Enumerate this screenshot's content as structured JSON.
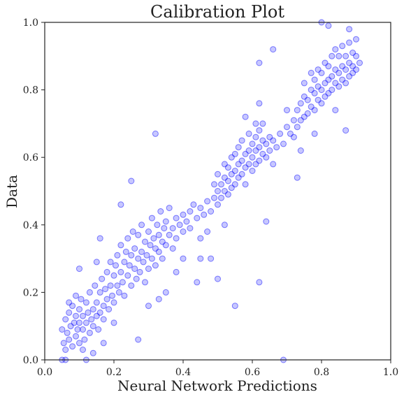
{
  "chart_data": {
    "type": "scatter",
    "title": "Calibration Plot",
    "xlabel": "Neural Network Predictions",
    "ylabel": "Data",
    "xlim": [
      0.0,
      1.0
    ],
    "ylim": [
      0.0,
      1.0
    ],
    "x_ticks": [
      0.0,
      0.2,
      0.4,
      0.6,
      0.8,
      1.0
    ],
    "y_ticks": [
      0.0,
      0.2,
      0.4,
      0.6,
      0.8,
      1.0
    ],
    "x_tick_labels": [
      "0.0",
      "0.2",
      "0.4",
      "0.6",
      "0.8",
      "1.0"
    ],
    "y_tick_labels": [
      "0.0",
      "0.2",
      "0.4",
      "0.6",
      "0.8",
      "1.0"
    ],
    "grid": false,
    "legend": "none",
    "marker_color": "#0000ff",
    "marker_alpha": 0.22,
    "series": [
      {
        "points": [
          [
            0.05,
            0.09
          ],
          [
            0.055,
            0.05
          ],
          [
            0.06,
            0.12
          ],
          [
            0.06,
            0.03
          ],
          [
            0.065,
            0.08
          ],
          [
            0.07,
            0.14
          ],
          [
            0.07,
            0.06
          ],
          [
            0.075,
            0.1
          ],
          [
            0.08,
            0.04
          ],
          [
            0.08,
            0.16
          ],
          [
            0.085,
            0.11
          ],
          [
            0.09,
            0.07
          ],
          [
            0.09,
            0.13
          ],
          [
            0.095,
            0.09
          ],
          [
            0.1,
            0.15
          ],
          [
            0.1,
            0.05
          ],
          [
            0.1,
            0.11
          ],
          [
            0.105,
            0.18
          ],
          [
            0.11,
            0.09
          ],
          [
            0.11,
            0.13
          ],
          [
            0.115,
            0.06
          ],
          [
            0.12,
            0.17
          ],
          [
            0.12,
            0.11
          ],
          [
            0.125,
            0.14
          ],
          [
            0.13,
            0.08
          ],
          [
            0.13,
            0.2
          ],
          [
            0.135,
            0.12
          ],
          [
            0.14,
            0.15
          ],
          [
            0.14,
            0.1
          ],
          [
            0.145,
            0.22
          ],
          [
            0.15,
            0.13
          ],
          [
            0.15,
            0.17
          ],
          [
            0.155,
            0.09
          ],
          [
            0.16,
            0.2
          ],
          [
            0.16,
            0.14
          ],
          [
            0.165,
            0.24
          ],
          [
            0.17,
            0.16
          ],
          [
            0.17,
            0.12
          ],
          [
            0.175,
            0.21
          ],
          [
            0.18,
            0.18
          ],
          [
            0.18,
            0.26
          ],
          [
            0.185,
            0.15
          ],
          [
            0.19,
            0.22
          ],
          [
            0.19,
            0.29
          ],
          [
            0.195,
            0.19
          ],
          [
            0.2,
            0.25
          ],
          [
            0.2,
            0.17
          ],
          [
            0.205,
            0.28
          ],
          [
            0.21,
            0.22
          ],
          [
            0.21,
            0.31
          ],
          [
            0.215,
            0.2
          ],
          [
            0.22,
            0.26
          ],
          [
            0.22,
            0.34
          ],
          [
            0.225,
            0.23
          ],
          [
            0.23,
            0.29
          ],
          [
            0.23,
            0.19
          ],
          [
            0.235,
            0.32
          ],
          [
            0.24,
            0.25
          ],
          [
            0.24,
            0.36
          ],
          [
            0.245,
            0.28
          ],
          [
            0.25,
            0.22
          ],
          [
            0.25,
            0.31
          ],
          [
            0.255,
            0.38
          ],
          [
            0.26,
            0.27
          ],
          [
            0.26,
            0.33
          ],
          [
            0.265,
            0.24
          ],
          [
            0.27,
            0.3
          ],
          [
            0.27,
            0.37
          ],
          [
            0.275,
            0.26
          ],
          [
            0.28,
            0.32
          ],
          [
            0.28,
            0.4
          ],
          [
            0.285,
            0.29
          ],
          [
            0.29,
            0.35
          ],
          [
            0.29,
            0.23
          ],
          [
            0.295,
            0.31
          ],
          [
            0.3,
            0.38
          ],
          [
            0.3,
            0.27
          ],
          [
            0.305,
            0.34
          ],
          [
            0.31,
            0.42
          ],
          [
            0.31,
            0.3
          ],
          [
            0.315,
            0.36
          ],
          [
            0.32,
            0.28
          ],
          [
            0.32,
            0.33
          ],
          [
            0.325,
            0.4
          ],
          [
            0.33,
            0.32
          ],
          [
            0.33,
            0.37
          ],
          [
            0.335,
            0.44
          ],
          [
            0.34,
            0.35
          ],
          [
            0.34,
            0.3
          ],
          [
            0.345,
            0.39
          ],
          [
            0.35,
            0.34
          ],
          [
            0.35,
            0.41
          ],
          [
            0.36,
            0.37
          ],
          [
            0.36,
            0.45
          ],
          [
            0.37,
            0.39
          ],
          [
            0.37,
            0.33
          ],
          [
            0.38,
            0.42
          ],
          [
            0.38,
            0.36
          ],
          [
            0.39,
            0.4
          ],
          [
            0.4,
            0.43
          ],
          [
            0.4,
            0.38
          ],
          [
            0.41,
            0.41
          ],
          [
            0.42,
            0.44
          ],
          [
            0.42,
            0.39
          ],
          [
            0.43,
            0.46
          ],
          [
            0.44,
            0.42
          ],
          [
            0.45,
            0.45
          ],
          [
            0.45,
            0.3
          ],
          [
            0.44,
            0.23
          ],
          [
            0.46,
            0.43
          ],
          [
            0.47,
            0.47
          ],
          [
            0.48,
            0.44
          ],
          [
            0.49,
            0.48
          ],
          [
            0.49,
            0.52
          ],
          [
            0.5,
            0.5
          ],
          [
            0.5,
            0.46
          ],
          [
            0.5,
            0.55
          ],
          [
            0.51,
            0.52
          ],
          [
            0.51,
            0.48
          ],
          [
            0.52,
            0.54
          ],
          [
            0.52,
            0.5
          ],
          [
            0.52,
            0.58
          ],
          [
            0.53,
            0.53
          ],
          [
            0.53,
            0.49
          ],
          [
            0.53,
            0.57
          ],
          [
            0.54,
            0.55
          ],
          [
            0.54,
            0.51
          ],
          [
            0.54,
            0.6
          ],
          [
            0.55,
            0.56
          ],
          [
            0.55,
            0.52
          ],
          [
            0.55,
            0.61
          ],
          [
            0.56,
            0.58
          ],
          [
            0.56,
            0.54
          ],
          [
            0.56,
            0.63
          ],
          [
            0.57,
            0.59
          ],
          [
            0.57,
            0.55
          ],
          [
            0.57,
            0.65
          ],
          [
            0.58,
            0.61
          ],
          [
            0.58,
            0.57
          ],
          [
            0.58,
            0.52
          ],
          [
            0.59,
            0.62
          ],
          [
            0.59,
            0.58
          ],
          [
            0.59,
            0.67
          ],
          [
            0.6,
            0.6
          ],
          [
            0.6,
            0.64
          ],
          [
            0.6,
            0.56
          ],
          [
            0.61,
            0.62
          ],
          [
            0.61,
            0.66
          ],
          [
            0.61,
            0.58
          ],
          [
            0.62,
            0.63
          ],
          [
            0.62,
            0.68
          ],
          [
            0.62,
            0.59
          ],
          [
            0.63,
            0.65
          ],
          [
            0.63,
            0.61
          ],
          [
            0.63,
            0.7
          ],
          [
            0.64,
            0.64
          ],
          [
            0.64,
            0.6
          ],
          [
            0.65,
            0.66
          ],
          [
            0.65,
            0.62
          ],
          [
            0.66,
            0.65
          ],
          [
            0.67,
            0.63
          ],
          [
            0.68,
            0.67
          ],
          [
            0.69,
            0.64
          ],
          [
            0.7,
            0.69
          ],
          [
            0.71,
            0.67
          ],
          [
            0.72,
            0.71
          ],
          [
            0.72,
            0.66
          ],
          [
            0.73,
            0.74
          ],
          [
            0.73,
            0.69
          ],
          [
            0.74,
            0.76
          ],
          [
            0.74,
            0.71
          ],
          [
            0.75,
            0.78
          ],
          [
            0.75,
            0.72
          ],
          [
            0.75,
            0.82
          ],
          [
            0.76,
            0.77
          ],
          [
            0.76,
            0.73
          ],
          [
            0.77,
            0.8
          ],
          [
            0.77,
            0.75
          ],
          [
            0.77,
            0.85
          ],
          [
            0.78,
            0.79
          ],
          [
            0.78,
            0.74
          ],
          [
            0.78,
            0.83
          ],
          [
            0.79,
            0.81
          ],
          [
            0.79,
            0.77
          ],
          [
            0.79,
            0.86
          ],
          [
            0.8,
            0.8
          ],
          [
            0.8,
            0.76
          ],
          [
            0.8,
            0.85
          ],
          [
            0.81,
            0.82
          ],
          [
            0.81,
            0.78
          ],
          [
            0.81,
            0.88
          ],
          [
            0.82,
            0.83
          ],
          [
            0.82,
            0.79
          ],
          [
            0.82,
            0.87
          ],
          [
            0.83,
            0.84
          ],
          [
            0.83,
            0.8
          ],
          [
            0.83,
            0.9
          ],
          [
            0.84,
            0.86
          ],
          [
            0.84,
            0.82
          ],
          [
            0.84,
            0.92
          ],
          [
            0.85,
            0.85
          ],
          [
            0.85,
            0.81
          ],
          [
            0.85,
            0.9
          ],
          [
            0.86,
            0.87
          ],
          [
            0.86,
            0.83
          ],
          [
            0.86,
            0.93
          ],
          [
            0.87,
            0.86
          ],
          [
            0.87,
            0.9
          ],
          [
            0.87,
            0.82
          ],
          [
            0.88,
            0.88
          ],
          [
            0.88,
            0.84
          ],
          [
            0.88,
            0.94
          ],
          [
            0.89,
            0.87
          ],
          [
            0.89,
            0.91
          ],
          [
            0.89,
            0.85
          ],
          [
            0.9,
            0.9
          ],
          [
            0.9,
            0.86
          ],
          [
            0.9,
            0.95
          ],
          [
            0.62,
            0.88
          ],
          [
            0.66,
            0.92
          ],
          [
            0.32,
            0.67
          ],
          [
            0.25,
            0.53
          ],
          [
            0.62,
            0.23
          ],
          [
            0.61,
            0.7
          ],
          [
            0.8,
            1.0
          ],
          [
            0.82,
            0.99
          ],
          [
            0.88,
            0.98
          ],
          [
            0.64,
            0.41
          ],
          [
            0.48,
            0.3
          ],
          [
            0.5,
            0.24
          ],
          [
            0.15,
            0.29
          ],
          [
            0.22,
            0.46
          ],
          [
            0.27,
            0.06
          ],
          [
            0.2,
            0.11
          ],
          [
            0.1,
            0.27
          ],
          [
            0.12,
            0.0
          ],
          [
            0.06,
            0.0
          ],
          [
            0.05,
            0.0
          ],
          [
            0.69,
            0.0
          ],
          [
            0.55,
            0.16
          ],
          [
            0.73,
            0.54
          ],
          [
            0.78,
            0.67
          ],
          [
            0.87,
            0.68
          ],
          [
            0.62,
            0.76
          ],
          [
            0.45,
            0.36
          ],
          [
            0.38,
            0.26
          ],
          [
            0.35,
            0.2
          ],
          [
            0.16,
            0.36
          ],
          [
            0.09,
            0.19
          ],
          [
            0.07,
            0.17
          ],
          [
            0.11,
            0.03
          ],
          [
            0.14,
            0.02
          ],
          [
            0.17,
            0.05
          ],
          [
            0.3,
            0.16
          ],
          [
            0.33,
            0.18
          ],
          [
            0.4,
            0.3
          ],
          [
            0.52,
            0.4
          ],
          [
            0.47,
            0.38
          ],
          [
            0.58,
            0.72
          ],
          [
            0.7,
            0.74
          ],
          [
            0.74,
            0.62
          ],
          [
            0.84,
            0.74
          ],
          [
            0.91,
            0.88
          ],
          [
            0.66,
            0.58
          ]
        ]
      }
    ]
  }
}
